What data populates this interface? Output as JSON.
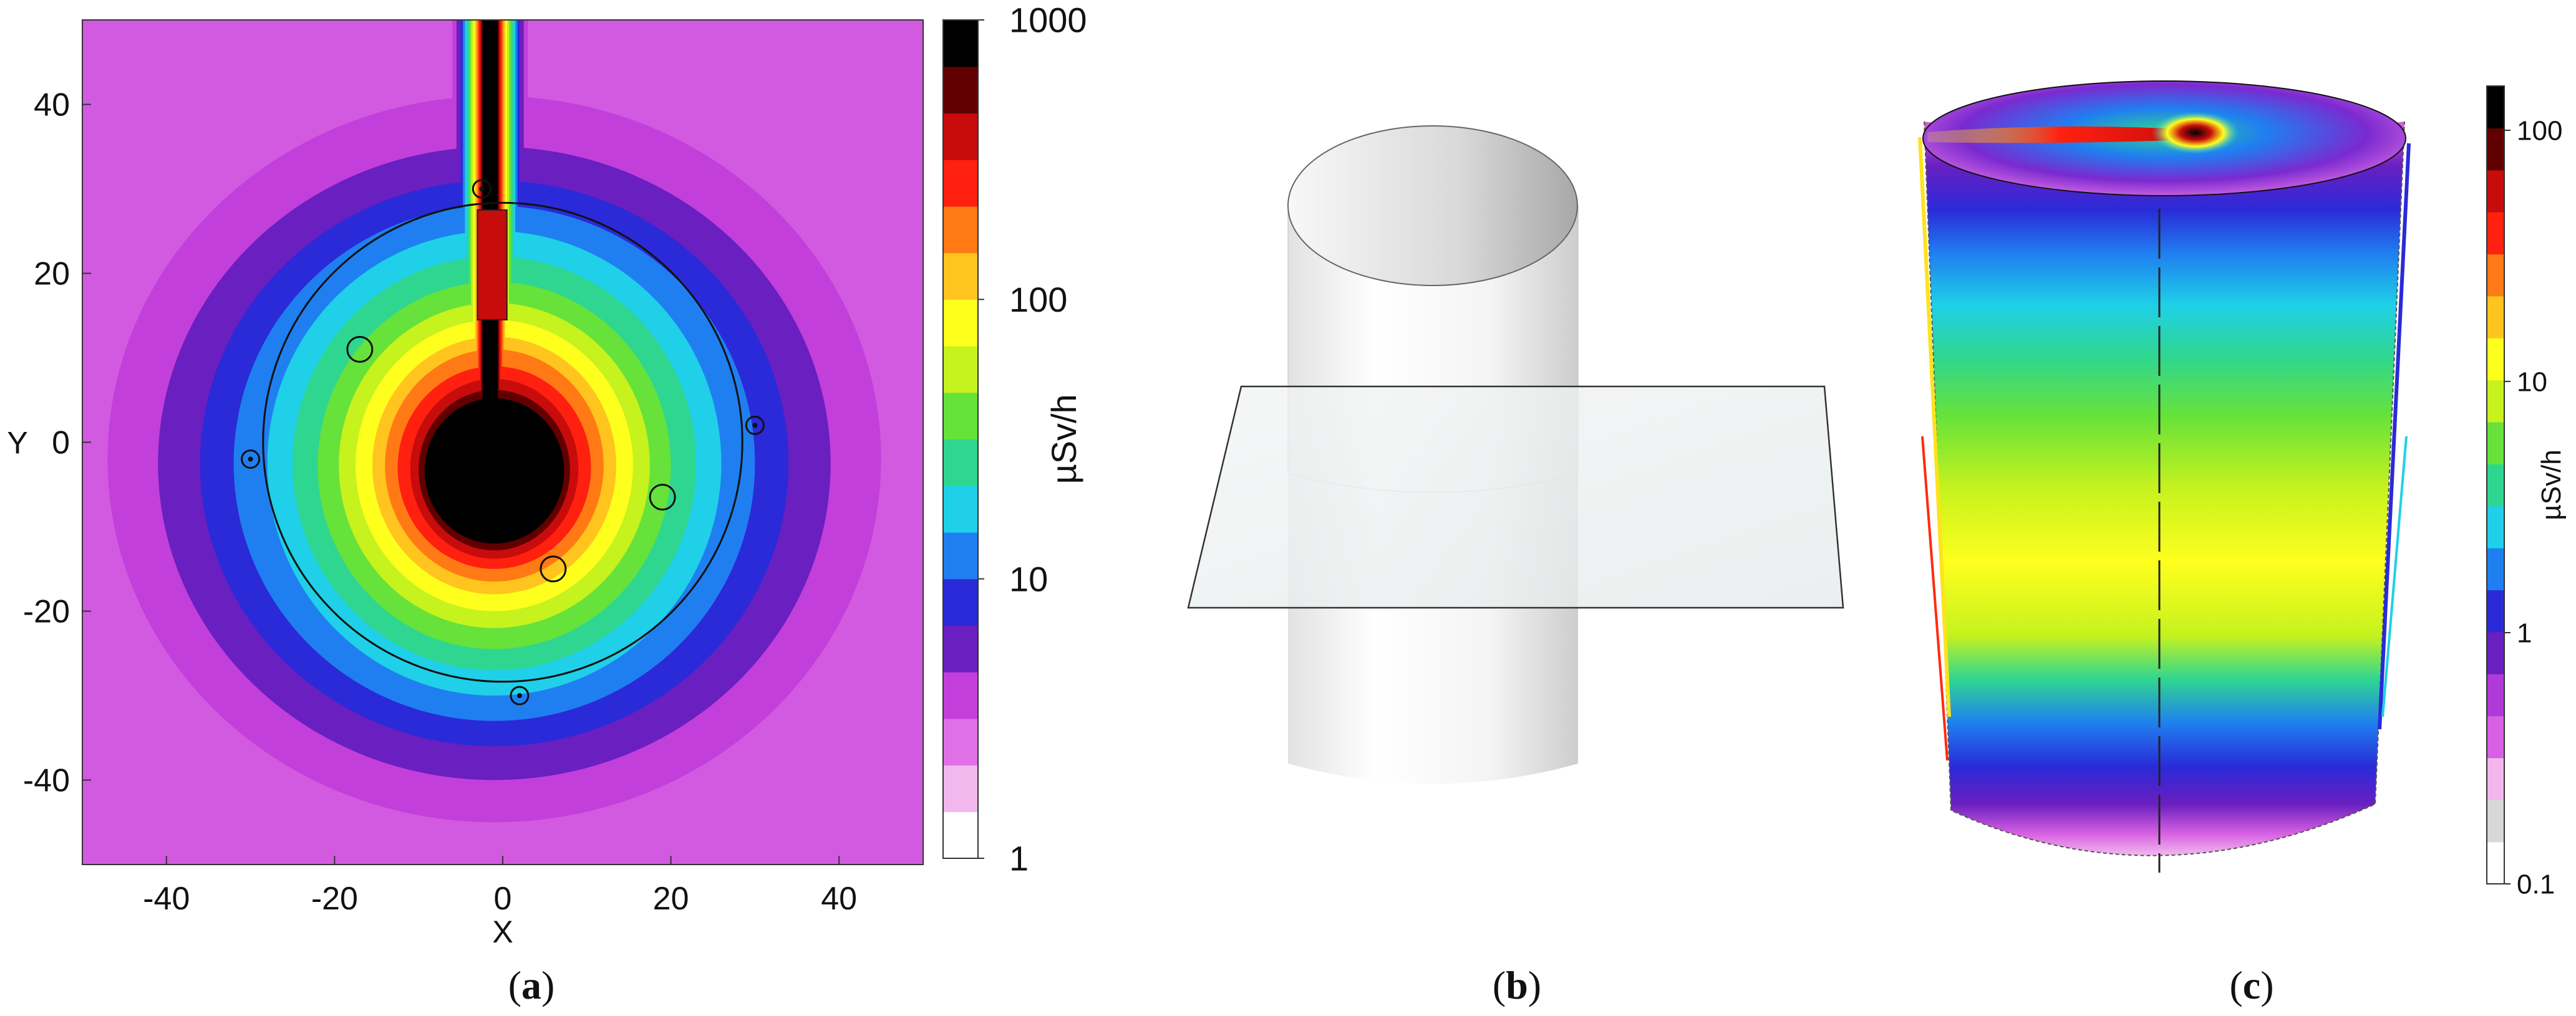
{
  "figure": {
    "captions": [
      {
        "open": "(",
        "letter": "a",
        "close": ")"
      },
      {
        "open": "(",
        "letter": "b",
        "close": ")"
      },
      {
        "open": "(",
        "letter": "c",
        "close": ")"
      }
    ]
  },
  "chart_data": [
    {
      "panel": "a",
      "type": "heatmap",
      "xlabel": "X",
      "ylabel": "Y",
      "xlim": [
        -50,
        50
      ],
      "ylim": [
        -50,
        50
      ],
      "x_ticks": [
        -40,
        -20,
        0,
        20,
        40
      ],
      "y_ticks": [
        40,
        20,
        0,
        -20,
        -40
      ],
      "x_tick_labels": [
        "-40",
        "-20",
        "0",
        "20",
        "40"
      ],
      "y_tick_labels": [
        "40",
        "20",
        "0",
        "-20",
        "-40"
      ],
      "colorbar": {
        "label": "µSv/h",
        "scale": "log",
        "min": 1,
        "max": 1000,
        "ticks": [
          1000,
          100,
          10,
          1
        ],
        "tick_labels": [
          "1000",
          "100",
          "10",
          "1"
        ]
      },
      "vessel_circle": {
        "center": [
          0,
          0
        ],
        "radius": 28.5
      },
      "source_positions": [
        {
          "x": 6,
          "y": -15
        },
        {
          "x": -3,
          "y": -3
        },
        {
          "x": 19,
          "y": -6.5
        },
        {
          "x": -17,
          "y": 11
        }
      ],
      "detector_positions": [
        {
          "x": -2.5,
          "y": 30
        },
        {
          "x": 30,
          "y": 2
        },
        {
          "x": -30,
          "y": -2
        },
        {
          "x": 2,
          "y": -30
        }
      ],
      "grid": false
    },
    {
      "panel": "b",
      "type": "diagram",
      "elements": [
        "cylinder",
        "horizontal cutting plane"
      ]
    },
    {
      "panel": "c",
      "type": "heatmap",
      "surface": "cylinder",
      "colorbar": {
        "label": "µSv/h",
        "scale": "log",
        "min": 0.1,
        "max": 150,
        "ticks": [
          100,
          10,
          1,
          0.1
        ],
        "tick_labels": [
          "100",
          "10",
          "1",
          "0.1"
        ]
      },
      "grid": false
    }
  ],
  "colors": {
    "map_stops": [
      "#ffffff",
      "#f2b8ee",
      "#e070e6",
      "#c23fdb",
      "#6a1fc0",
      "#2a2ad8",
      "#1f7ff0",
      "#1fd0e8",
      "#2fd690",
      "#66e23a",
      "#c6f21e",
      "#ffff1e",
      "#ffc41e",
      "#ff7a14",
      "#ff2010",
      "#c80c0c",
      "#600000",
      "#000000"
    ],
    "cap_stops": [
      "#ffffff",
      "#d8d8d8",
      "#f2b8ee",
      "#d860e2",
      "#b03ad8",
      "#6a1fc0",
      "#2a2ad8",
      "#1f7ff0",
      "#1fd0e8",
      "#2fd690",
      "#66e23a",
      "#c6f21e",
      "#ffff1e",
      "#ffc41e",
      "#ff7a14",
      "#ff2010",
      "#c80c0c",
      "#600000",
      "#000000"
    ]
  }
}
